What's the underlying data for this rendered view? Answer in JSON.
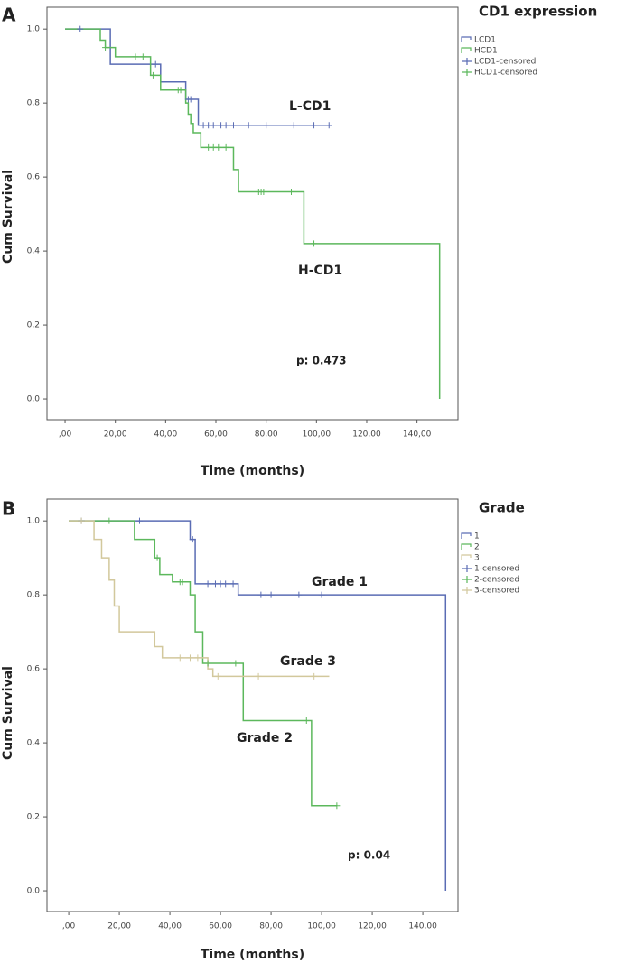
{
  "chart_data": [
    {
      "type": "step",
      "panel": "A",
      "legend_title": "CD1 expression",
      "xlabel": "Time (months)",
      "ylabel": "Cum Survival",
      "xlim": [
        -7.2,
        156.3
      ],
      "ylim": [
        -0.056,
        1.059
      ],
      "xticks": [
        {
          "value": 0,
          "label": ",00"
        },
        {
          "value": 20,
          "label": "20,00"
        },
        {
          "value": 40,
          "label": "40,00"
        },
        {
          "value": 60,
          "label": "60,00"
        },
        {
          "value": 80,
          "label": "80,00"
        },
        {
          "value": 100,
          "label": "100,00"
        },
        {
          "value": 120,
          "label": "120,00"
        },
        {
          "value": 140,
          "label": "140,00"
        }
      ],
      "yticks": [
        {
          "value": 0,
          "label": "0,0"
        },
        {
          "value": 0.2,
          "label": "0,2"
        },
        {
          "value": 0.4,
          "label": "0,4"
        },
        {
          "value": 0.6,
          "label": "0,6"
        },
        {
          "value": 0.8,
          "label": "0,8"
        },
        {
          "value": 1,
          "label": "1,0"
        }
      ],
      "series": [
        {
          "name": "LCD1",
          "style": "step",
          "color": "#5a6cb4",
          "x": [
            0,
            18,
            38,
            48,
            53,
            106
          ],
          "values": [
            1,
            0.905,
            0.857,
            0.81,
            0.74,
            0.74
          ]
        },
        {
          "name": "HCD1",
          "style": "step",
          "color": "#5cb85c",
          "x": [
            0,
            14,
            16,
            20,
            34,
            38,
            48,
            49,
            50,
            51,
            54,
            67,
            69,
            95,
            149
          ],
          "values": [
            1,
            0.97,
            0.95,
            0.925,
            0.875,
            0.835,
            0.8,
            0.77,
            0.745,
            0.72,
            0.68,
            0.62,
            0.56,
            0.42,
            0
          ]
        },
        {
          "name": "LCD1-censored",
          "style": "censored",
          "color": "#5a6cb4",
          "x": [
            6,
            36,
            49,
            50,
            55,
            57,
            59,
            62,
            64,
            67,
            73,
            80,
            91,
            99,
            105
          ],
          "values": [
            1,
            0.905,
            0.81,
            0.81,
            0.74,
            0.74,
            0.74,
            0.74,
            0.74,
            0.74,
            0.74,
            0.74,
            0.74,
            0.74,
            0.74
          ]
        },
        {
          "name": "HCD1-censored",
          "style": "censored",
          "color": "#5cb85c",
          "x": [
            16,
            28,
            31,
            35,
            45,
            46,
            57,
            59,
            61,
            64,
            77,
            78,
            79,
            90,
            99
          ],
          "values": [
            0.95,
            0.925,
            0.925,
            0.875,
            0.835,
            0.835,
            0.68,
            0.68,
            0.68,
            0.68,
            0.56,
            0.56,
            0.56,
            0.56,
            0.42
          ]
        }
      ],
      "annotations": [
        "L-CD1",
        "H-CD1",
        "p: 0.473"
      ]
    },
    {
      "type": "step",
      "panel": "B",
      "legend_title": "Grade",
      "xlabel": "Time (months)",
      "ylabel": "Cum Survival",
      "xlim": [
        -8.6,
        153.9
      ],
      "ylim": [
        -0.056,
        1.059
      ],
      "xticks": [
        {
          "value": 0,
          "label": ",00"
        },
        {
          "value": 20,
          "label": "20,00"
        },
        {
          "value": 40,
          "label": "40,00"
        },
        {
          "value": 60,
          "label": "60,00"
        },
        {
          "value": 80,
          "label": "80,00"
        },
        {
          "value": 100,
          "label": "100,00"
        },
        {
          "value": 120,
          "label": "120,00"
        },
        {
          "value": 140,
          "label": "140,00"
        }
      ],
      "yticks": [
        {
          "value": 0,
          "label": "0,0"
        },
        {
          "value": 0.2,
          "label": "0,2"
        },
        {
          "value": 0.4,
          "label": "0,4"
        },
        {
          "value": 0.6,
          "label": "0,6"
        },
        {
          "value": 0.8,
          "label": "0,8"
        },
        {
          "value": 1,
          "label": "1,0"
        }
      ],
      "series": [
        {
          "name": "1",
          "style": "step",
          "color": "#5a6cb4",
          "x": [
            0,
            48,
            50,
            67,
            149
          ],
          "values": [
            1,
            0.95,
            0.83,
            0.8,
            0
          ]
        },
        {
          "name": "2",
          "style": "step",
          "color": "#5cb85c",
          "x": [
            0,
            26,
            34,
            36,
            41,
            48,
            50,
            53,
            69,
            96,
            106
          ],
          "values": [
            1,
            0.95,
            0.9,
            0.855,
            0.835,
            0.8,
            0.7,
            0.615,
            0.46,
            0.23,
            0.23
          ]
        },
        {
          "name": "3",
          "style": "step",
          "color": "#d2c89c",
          "x": [
            0,
            10,
            13,
            16,
            18,
            20,
            34,
            37,
            55,
            57,
            103
          ],
          "values": [
            1,
            0.95,
            0.9,
            0.84,
            0.77,
            0.7,
            0.66,
            0.63,
            0.6,
            0.58,
            0.58
          ]
        },
        {
          "name": "1-censored",
          "style": "censored",
          "color": "#5a6cb4",
          "x": [
            5,
            28,
            49,
            55,
            58,
            60,
            62,
            65,
            76,
            78,
            80,
            91,
            100
          ],
          "values": [
            1,
            1,
            0.95,
            0.83,
            0.83,
            0.83,
            0.83,
            0.83,
            0.8,
            0.8,
            0.8,
            0.8,
            0.8
          ]
        },
        {
          "name": "2-censored",
          "style": "censored",
          "color": "#5cb85c",
          "x": [
            16,
            35,
            44,
            45,
            55,
            66,
            94,
            106
          ],
          "values": [
            1,
            0.9,
            0.835,
            0.835,
            0.615,
            0.615,
            0.46,
            0.23
          ]
        },
        {
          "name": "3-censored",
          "style": "censored",
          "color": "#d2c89c",
          "x": [
            5,
            44,
            48,
            51,
            59,
            75,
            97
          ],
          "values": [
            1,
            0.63,
            0.63,
            0.63,
            0.58,
            0.58,
            0.58
          ]
        }
      ],
      "annotations": [
        "Grade 1",
        "Grade 3",
        "Grade 2",
        "p: 0.04"
      ]
    }
  ]
}
